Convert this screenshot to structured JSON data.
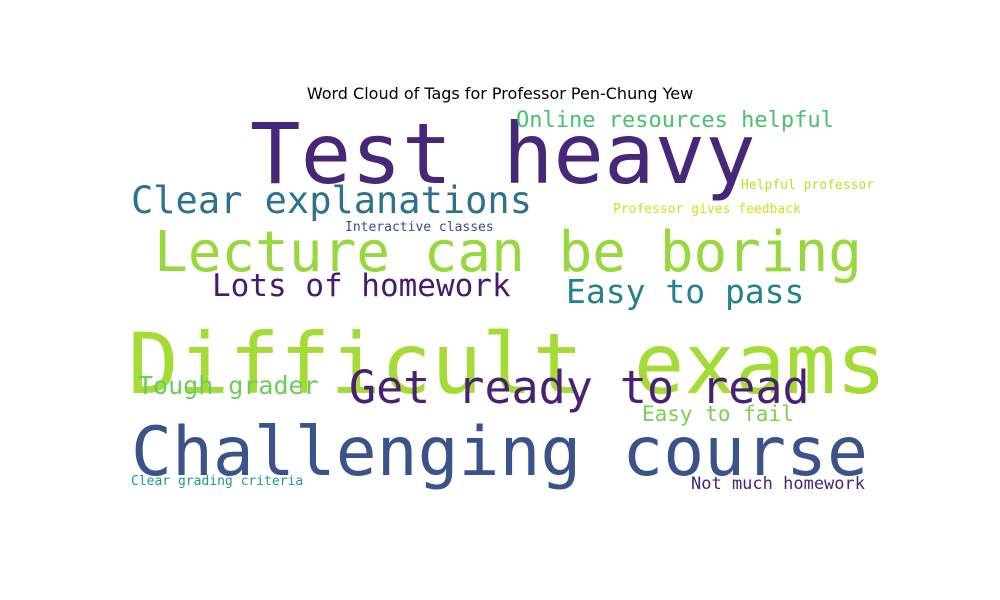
{
  "chart_data": {
    "type": "wordcloud",
    "title": "Word Cloud of Tags for Professor Pen-Chung Yew",
    "background": "#ffffff",
    "words": [
      {
        "text": "Test heavy",
        "color": "#472777"
      },
      {
        "text": "Difficult exams",
        "color": "#a5db36"
      },
      {
        "text": "Challenging course",
        "color": "#3b528b"
      },
      {
        "text": "Lecture can be boring",
        "color": "#98d83e"
      },
      {
        "text": "Get ready to read",
        "color": "#482173"
      },
      {
        "text": "Clear explanations",
        "color": "#2c728e"
      },
      {
        "text": "Easy to pass",
        "color": "#26818e"
      },
      {
        "text": "Lots of homework",
        "color": "#481a6c"
      },
      {
        "text": "Online resources helpful",
        "color": "#4ac16d"
      },
      {
        "text": "Tough grader",
        "color": "#6ccd5a"
      },
      {
        "text": "Easy to fail",
        "color": "#7ad151"
      },
      {
        "text": "Not much homework",
        "color": "#482475"
      },
      {
        "text": "Helpful professor",
        "color": "#bddf26"
      },
      {
        "text": "Professor gives feedback",
        "color": "#d0e11c"
      },
      {
        "text": "Interactive classes",
        "color": "#3e4a89"
      },
      {
        "text": "Clear grading criteria",
        "color": "#1f9a8a"
      }
    ]
  }
}
